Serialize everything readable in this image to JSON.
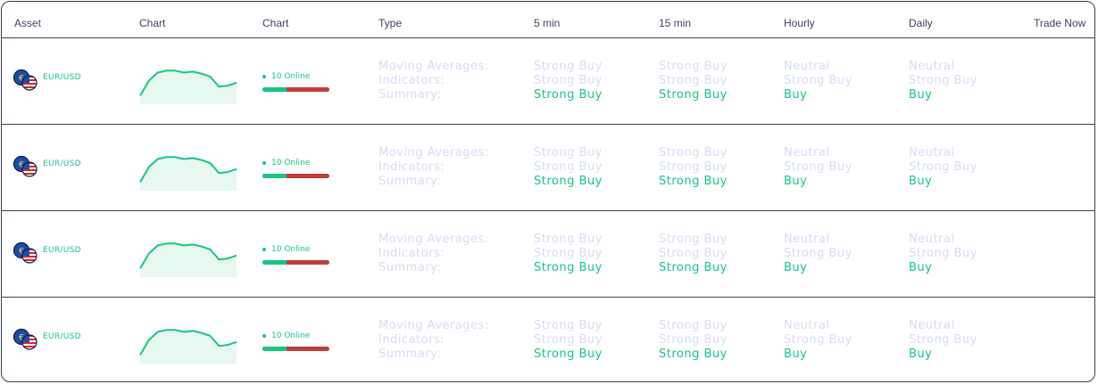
{
  "header": {
    "asset": "Asset",
    "chart1": "Chart",
    "chart2": "Chart",
    "type": "Type",
    "min5": "5 min",
    "min15": "15 min",
    "hourly": "Hourly",
    "daily": "Daily",
    "trade": "Trade Now"
  },
  "colors": {
    "accent": "#18c77f",
    "danger": "#c33c3c",
    "muted": "#d6dcf2",
    "border": "#3b4157"
  },
  "rows": [
    {
      "asset": "EUR/USD",
      "online": "10 Online",
      "online_ratio": 0.36,
      "type_labels": [
        "Moving Averages:",
        "Indicators:",
        "Summary:"
      ],
      "min5": [
        "Strong Buy",
        "Strong Buy",
        "Strong Buy"
      ],
      "min15": [
        "Strong Buy",
        "Strong Buy",
        "Strong Buy"
      ],
      "hourly": [
        "Neutral",
        "Strong Buy",
        "Buy"
      ],
      "daily": [
        "Neutral",
        "Strong Buy",
        "Buy"
      ],
      "sparkline": [
        5,
        20,
        28,
        30,
        30,
        28,
        29,
        27,
        24,
        14,
        15,
        18
      ]
    },
    {
      "asset": "EUR/USD",
      "online": "10 Online",
      "online_ratio": 0.36,
      "type_labels": [
        "Moving Averages:",
        "Indicators:",
        "Summary:"
      ],
      "min5": [
        "Strong Buy",
        "Strong Buy",
        "Strong Buy"
      ],
      "min15": [
        "Strong Buy",
        "Strong Buy",
        "Strong Buy"
      ],
      "hourly": [
        "Neutral",
        "Strong Buy",
        "Buy"
      ],
      "daily": [
        "Neutral",
        "Strong Buy",
        "Buy"
      ],
      "sparkline": [
        5,
        20,
        28,
        30,
        30,
        28,
        29,
        27,
        24,
        14,
        15,
        18
      ]
    },
    {
      "asset": "EUR/USD",
      "online": "10 Online",
      "online_ratio": 0.36,
      "type_labels": [
        "Moving Averages:",
        "Indicators:",
        "Summary:"
      ],
      "min5": [
        "Strong Buy",
        "Strong Buy",
        "Strong Buy"
      ],
      "min15": [
        "Strong Buy",
        "Strong Buy",
        "Strong Buy"
      ],
      "hourly": [
        "Neutral",
        "Strong Buy",
        "Buy"
      ],
      "daily": [
        "Neutral",
        "Strong Buy",
        "Buy"
      ],
      "sparkline": [
        5,
        20,
        28,
        30,
        30,
        28,
        29,
        27,
        24,
        14,
        15,
        18
      ]
    },
    {
      "asset": "EUR/USD",
      "online": "10 Online",
      "online_ratio": 0.36,
      "type_labels": [
        "Moving Averages:",
        "Indicators:",
        "Summary:"
      ],
      "min5": [
        "Strong Buy",
        "Strong Buy",
        "Strong Buy"
      ],
      "min15": [
        "Strong Buy",
        "Strong Buy",
        "Strong Buy"
      ],
      "hourly": [
        "Neutral",
        "Strong Buy",
        "Buy"
      ],
      "daily": [
        "Neutral",
        "Strong Buy",
        "Buy"
      ],
      "sparkline": [
        5,
        20,
        28,
        30,
        30,
        28,
        29,
        27,
        24,
        14,
        15,
        18
      ]
    }
  ]
}
